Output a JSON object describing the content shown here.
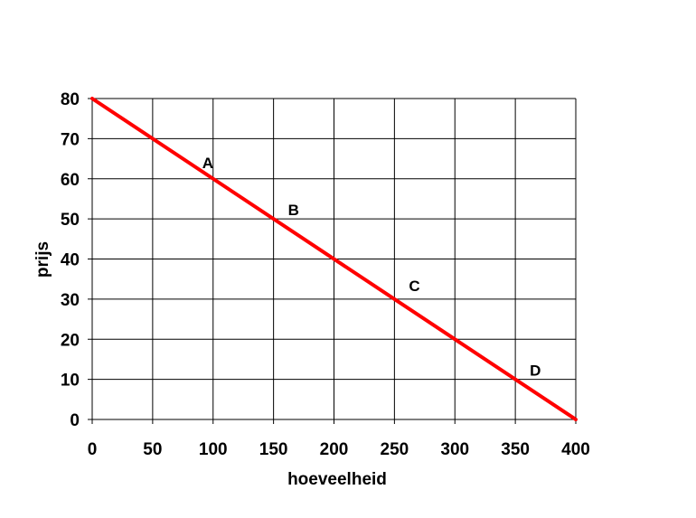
{
  "chart_data": {
    "type": "line",
    "title": "",
    "xlabel": "hoeveelheid",
    "ylabel": "prijs",
    "xlim": [
      0,
      400
    ],
    "ylim": [
      0,
      80
    ],
    "xticks": [
      0,
      50,
      100,
      150,
      200,
      250,
      300,
      350,
      400
    ],
    "yticks": [
      0,
      10,
      20,
      30,
      40,
      50,
      60,
      70,
      80
    ],
    "grid": true,
    "legend": "none",
    "series": [
      {
        "color": "#ff0000",
        "x": [
          0,
          400
        ],
        "y": [
          80,
          0
        ]
      }
    ],
    "annotations": [
      {
        "text": "A",
        "x": 100,
        "y": 60
      },
      {
        "text": "B",
        "x": 150,
        "y": 50
      },
      {
        "text": "C",
        "x": 250,
        "y": 30
      },
      {
        "text": "D",
        "x": 350,
        "y": 10
      }
    ]
  }
}
